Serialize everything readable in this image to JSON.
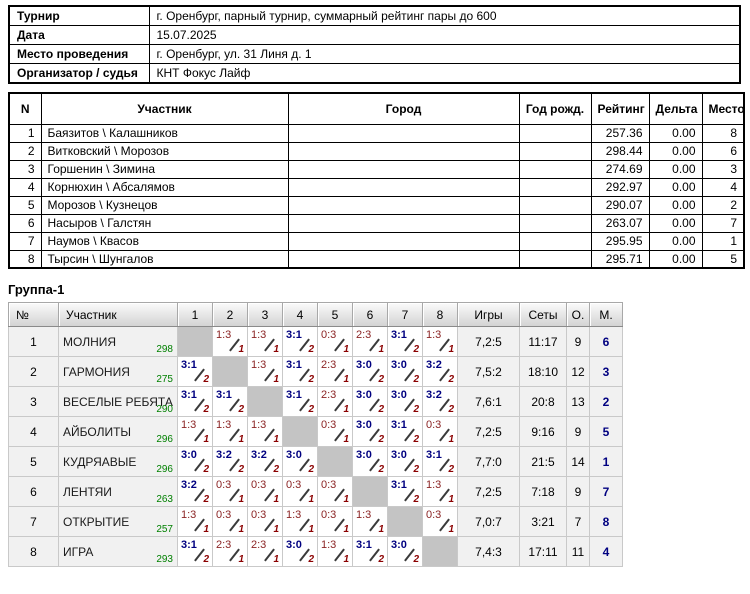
{
  "info_table": {
    "rows": [
      {
        "label": "Турнир",
        "value": "г. Оренбург, парный турнир, суммарный рейтинг пары до 600"
      },
      {
        "label": "Дата",
        "value": "15.07.2025"
      },
      {
        "label": "Место проведения",
        "value": "г. Оренбург, ул. 31 Линя д. 1"
      },
      {
        "label": "Организатор / судья",
        "value": "КНТ Фокус Лайф"
      }
    ]
  },
  "participants_table": {
    "headers": [
      "N",
      "Участник",
      "Город",
      "Год рожд.",
      "Рейтинг",
      "Дельта",
      "Место"
    ],
    "rows": [
      {
        "n": "1",
        "participant": "Баязитов \\ Калашников",
        "city": "",
        "birth_year": "",
        "rating": "257.36",
        "delta": "0.00",
        "place": "8"
      },
      {
        "n": "2",
        "participant": "Витковский \\ Морозов",
        "city": "",
        "birth_year": "",
        "rating": "298.44",
        "delta": "0.00",
        "place": "6"
      },
      {
        "n": "3",
        "participant": "Горшенин \\ Зимина",
        "city": "",
        "birth_year": "",
        "rating": "274.69",
        "delta": "0.00",
        "place": "3"
      },
      {
        "n": "4",
        "participant": "Корнюхин \\ Абсалямов",
        "city": "",
        "birth_year": "",
        "rating": "292.97",
        "delta": "0.00",
        "place": "4"
      },
      {
        "n": "5",
        "participant": "Морозов \\ Кузнецов",
        "city": "",
        "birth_year": "",
        "rating": "290.07",
        "delta": "0.00",
        "place": "2"
      },
      {
        "n": "6",
        "participant": "Насыров \\ Галстян",
        "city": "",
        "birth_year": "",
        "rating": "263.07",
        "delta": "0.00",
        "place": "7"
      },
      {
        "n": "7",
        "participant": "Наумов \\ Квасов",
        "city": "",
        "birth_year": "",
        "rating": "295.95",
        "delta": "0.00",
        "place": "1"
      },
      {
        "n": "8",
        "participant": "Тырсин \\ Шунгалов",
        "city": "",
        "birth_year": "",
        "rating": "295.71",
        "delta": "0.00",
        "place": "5"
      }
    ]
  },
  "group_table": {
    "title": "Группа-1",
    "headers": [
      "№",
      "Участник",
      "1",
      "2",
      "3",
      "4",
      "5",
      "6",
      "7",
      "8",
      "Игры",
      "Сеты",
      "О.",
      "М."
    ],
    "rows": [
      {
        "n": "1",
        "team": "МОЛНИЯ",
        "rating": "298",
        "results": [
          null,
          {
            "score": "1:3",
            "win": false,
            "points": "1"
          },
          {
            "score": "1:3",
            "win": false,
            "points": "1"
          },
          {
            "score": "3:1",
            "win": true,
            "points": "2"
          },
          {
            "score": "0:3",
            "win": false,
            "points": "1"
          },
          {
            "score": "2:3",
            "win": false,
            "points": "1"
          },
          {
            "score": "3:1",
            "win": true,
            "points": "2"
          },
          {
            "score": "1:3",
            "win": false,
            "points": "1"
          }
        ],
        "games": "7,2:5",
        "sets": "11:17",
        "points_total": "9",
        "place": "6"
      },
      {
        "n": "2",
        "team": "ГАРМОНИЯ",
        "rating": "275",
        "results": [
          {
            "score": "3:1",
            "win": true,
            "points": "2"
          },
          null,
          {
            "score": "1:3",
            "win": false,
            "points": "1"
          },
          {
            "score": "3:1",
            "win": true,
            "points": "2"
          },
          {
            "score": "2:3",
            "win": false,
            "points": "1"
          },
          {
            "score": "3:0",
            "win": true,
            "points": "2"
          },
          {
            "score": "3:0",
            "win": true,
            "points": "2"
          },
          {
            "score": "3:2",
            "win": true,
            "points": "2"
          }
        ],
        "games": "7,5:2",
        "sets": "18:10",
        "points_total": "12",
        "place": "3"
      },
      {
        "n": "3",
        "team": "ВЕСЕЛЫЕ РЕБЯТА",
        "rating": "290",
        "results": [
          {
            "score": "3:1",
            "win": true,
            "points": "2"
          },
          {
            "score": "3:1",
            "win": true,
            "points": "2"
          },
          null,
          {
            "score": "3:1",
            "win": true,
            "points": "2"
          },
          {
            "score": "2:3",
            "win": false,
            "points": "1"
          },
          {
            "score": "3:0",
            "win": true,
            "points": "2"
          },
          {
            "score": "3:0",
            "win": true,
            "points": "2"
          },
          {
            "score": "3:2",
            "win": true,
            "points": "2"
          }
        ],
        "games": "7,6:1",
        "sets": "20:8",
        "points_total": "13",
        "place": "2"
      },
      {
        "n": "4",
        "team": "АЙБОЛИТЫ",
        "rating": "296",
        "results": [
          {
            "score": "1:3",
            "win": false,
            "points": "1"
          },
          {
            "score": "1:3",
            "win": false,
            "points": "1"
          },
          {
            "score": "1:3",
            "win": false,
            "points": "1"
          },
          null,
          {
            "score": "0:3",
            "win": false,
            "points": "1"
          },
          {
            "score": "3:0",
            "win": true,
            "points": "2"
          },
          {
            "score": "3:1",
            "win": true,
            "points": "2"
          },
          {
            "score": "0:3",
            "win": false,
            "points": "1"
          }
        ],
        "games": "7,2:5",
        "sets": "9:16",
        "points_total": "9",
        "place": "5"
      },
      {
        "n": "5",
        "team": "КУДРЯАВЫЕ",
        "rating": "296",
        "results": [
          {
            "score": "3:0",
            "win": true,
            "points": "2"
          },
          {
            "score": "3:2",
            "win": true,
            "points": "2"
          },
          {
            "score": "3:2",
            "win": true,
            "points": "2"
          },
          {
            "score": "3:0",
            "win": true,
            "points": "2"
          },
          null,
          {
            "score": "3:0",
            "win": true,
            "points": "2"
          },
          {
            "score": "3:0",
            "win": true,
            "points": "2"
          },
          {
            "score": "3:1",
            "win": true,
            "points": "2"
          }
        ],
        "games": "7,7:0",
        "sets": "21:5",
        "points_total": "14",
        "place": "1"
      },
      {
        "n": "6",
        "team": "ЛЕНТЯИ",
        "rating": "263",
        "results": [
          {
            "score": "3:2",
            "win": true,
            "points": "2"
          },
          {
            "score": "0:3",
            "win": false,
            "points": "1"
          },
          {
            "score": "0:3",
            "win": false,
            "points": "1"
          },
          {
            "score": "0:3",
            "win": false,
            "points": "1"
          },
          {
            "score": "0:3",
            "win": false,
            "points": "1"
          },
          null,
          {
            "score": "3:1",
            "win": true,
            "points": "2"
          },
          {
            "score": "1:3",
            "win": false,
            "points": "1"
          }
        ],
        "games": "7,2:5",
        "sets": "7:18",
        "points_total": "9",
        "place": "7"
      },
      {
        "n": "7",
        "team": "ОТКРЫТИЕ",
        "rating": "257",
        "results": [
          {
            "score": "1:3",
            "win": false,
            "points": "1"
          },
          {
            "score": "0:3",
            "win": false,
            "points": "1"
          },
          {
            "score": "0:3",
            "win": false,
            "points": "1"
          },
          {
            "score": "1:3",
            "win": false,
            "points": "1"
          },
          {
            "score": "0:3",
            "win": false,
            "points": "1"
          },
          {
            "score": "1:3",
            "win": false,
            "points": "1"
          },
          null,
          {
            "score": "0:3",
            "win": false,
            "points": "1"
          }
        ],
        "games": "7,0:7",
        "sets": "3:21",
        "points_total": "7",
        "place": "8"
      },
      {
        "n": "8",
        "team": "ИГРА",
        "rating": "293",
        "results": [
          {
            "score": "3:1",
            "win": true,
            "points": "2"
          },
          {
            "score": "2:3",
            "win": false,
            "points": "1"
          },
          {
            "score": "2:3",
            "win": false,
            "points": "1"
          },
          {
            "score": "3:0",
            "win": true,
            "points": "2"
          },
          {
            "score": "1:3",
            "win": false,
            "points": "1"
          },
          {
            "score": "3:1",
            "win": true,
            "points": "2"
          },
          {
            "score": "3:0",
            "win": true,
            "points": "2"
          },
          null
        ],
        "games": "7,4:3",
        "sets": "17:11",
        "points_total": "11",
        "place": "4"
      }
    ]
  },
  "colors": {
    "win_score": "#000080",
    "loss_score": "#8B2323",
    "points": "#8B0000",
    "rating": "#008000",
    "place": "#000080",
    "diagonal_cell": "#c4c4c4"
  }
}
